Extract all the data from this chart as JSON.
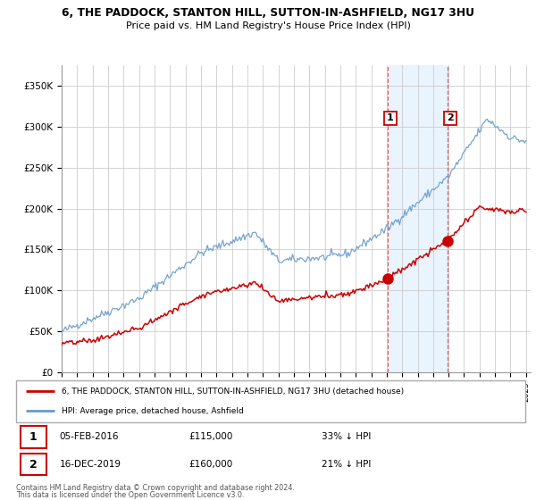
{
  "title_line1": "6, THE PADDOCK, STANTON HILL, SUTTON-IN-ASHFIELD, NG17 3HU",
  "title_line2": "Price paid vs. HM Land Registry's House Price Index (HPI)",
  "ylim": [
    0,
    375000
  ],
  "yticks": [
    0,
    50000,
    100000,
    150000,
    200000,
    250000,
    300000,
    350000
  ],
  "ytick_labels": [
    "£0",
    "£50K",
    "£100K",
    "£150K",
    "£200K",
    "£250K",
    "£300K",
    "£350K"
  ],
  "x_start_year": 1995,
  "x_end_year": 2025,
  "sale1_date": 2016.09,
  "sale1_price": 115000,
  "sale1_date_str": "05-FEB-2016",
  "sale1_price_str": "£115,000",
  "sale1_pct_str": "33% ↓ HPI",
  "sale2_date": 2019.96,
  "sale2_price": 160000,
  "sale2_date_str": "16-DEC-2019",
  "sale2_price_str": "£160,000",
  "sale2_pct_str": "21% ↓ HPI",
  "legend_line1": "6, THE PADDOCK, STANTON HILL, SUTTON-IN-ASHFIELD, NG17 3HU (detached house)",
  "legend_line2": "HPI: Average price, detached house, Ashfield",
  "footer_line1": "Contains HM Land Registry data © Crown copyright and database right 2024.",
  "footer_line2": "This data is licensed under the Open Government Licence v3.0.",
  "red_color": "#cc0000",
  "blue_color": "#6699cc",
  "background_color": "#ffffff",
  "grid_color": "#cccccc",
  "shade_color": "#ddeeff"
}
